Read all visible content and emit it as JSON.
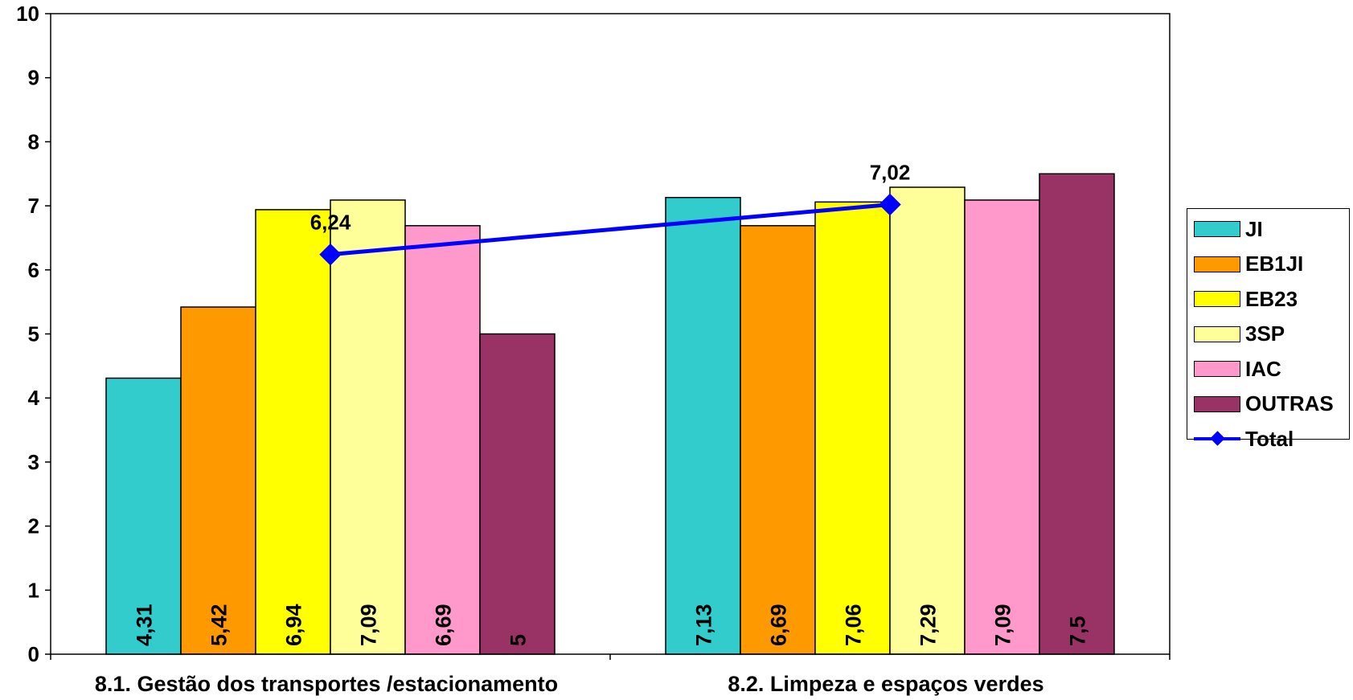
{
  "chart_data": {
    "type": "bar",
    "categories": [
      "8.1. Gestão dos transportes /estacionamento",
      "8.2. Limpeza e espaços verdes"
    ],
    "series": [
      {
        "name": "JI",
        "values": [
          4.31,
          7.13
        ],
        "labels": [
          "4,31",
          "7,13"
        ],
        "color": "#33CCCC"
      },
      {
        "name": "EB1JI",
        "values": [
          5.42,
          6.69
        ],
        "labels": [
          "5,42",
          "6,69"
        ],
        "color": "#FF9900"
      },
      {
        "name": "EB23",
        "values": [
          6.94,
          7.06
        ],
        "labels": [
          "6,94",
          "7,06"
        ],
        "color": "#FFFF00"
      },
      {
        "name": "3SP",
        "values": [
          7.09,
          7.29
        ],
        "labels": [
          "7,09",
          "7,29"
        ],
        "color": "#FFFF99"
      },
      {
        "name": "IAC",
        "values": [
          6.69,
          7.09
        ],
        "labels": [
          "6,69",
          "7,09"
        ],
        "color": "#FF99CC"
      },
      {
        "name": "OUTRAS",
        "values": [
          5,
          7.5
        ],
        "labels": [
          "5",
          "7,5"
        ],
        "color": "#993366"
      }
    ],
    "line_series": {
      "name": "Total",
      "type": "line",
      "values": [
        6.24,
        7.02
      ],
      "labels": [
        "6,24",
        "7,02"
      ],
      "color": "#0000FF",
      "marker": "diamond"
    },
    "ylim": [
      0,
      10
    ],
    "yticks": [
      "0",
      "1",
      "2",
      "3",
      "4",
      "5",
      "6",
      "7",
      "8",
      "9",
      "10"
    ],
    "grid": false,
    "legend_position": "right"
  }
}
